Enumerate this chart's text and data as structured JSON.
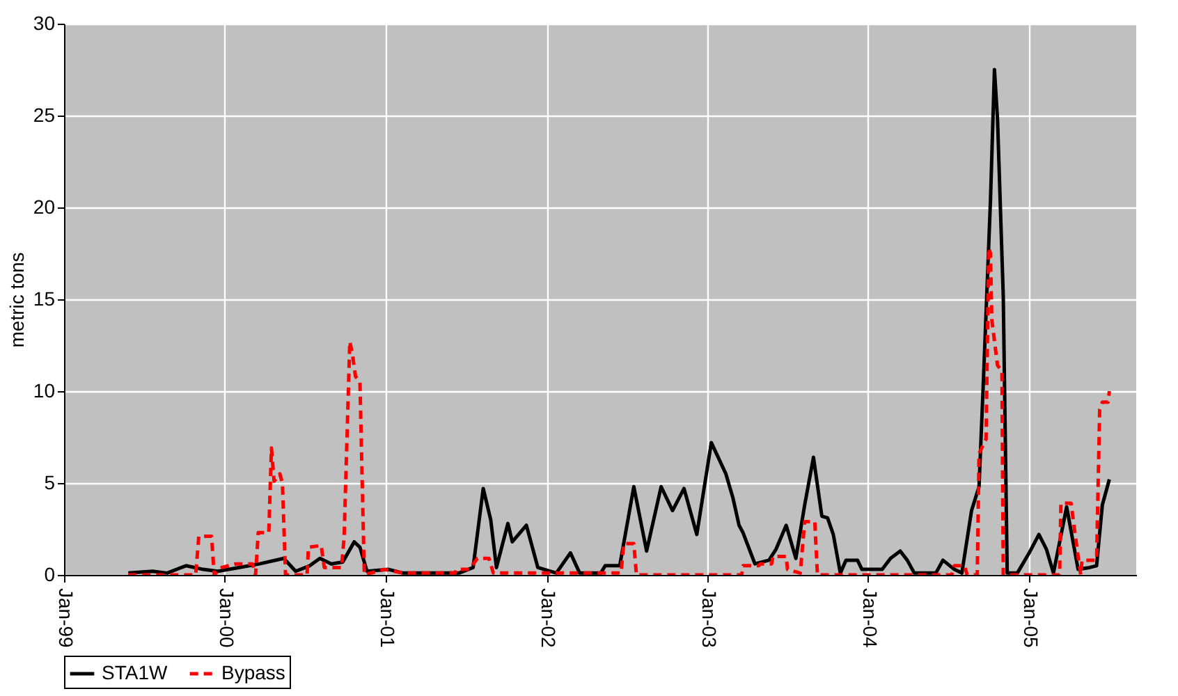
{
  "chart_data": {
    "type": "line",
    "ylabel": "metric tons",
    "xlim": [
      "1999-01-01",
      "2005-09-01"
    ],
    "xticks": [
      {
        "value": "1999-01-01",
        "label": "Jan-99"
      },
      {
        "value": "2000-01-01",
        "label": "Jan-00"
      },
      {
        "value": "2001-01-01",
        "label": "Jan-01"
      },
      {
        "value": "2002-01-01",
        "label": "Jan-02"
      },
      {
        "value": "2003-01-01",
        "label": "Jan-03"
      },
      {
        "value": "2004-01-01",
        "label": "Jan-04"
      },
      {
        "value": "2005-01-01",
        "label": "Jan-05"
      }
    ],
    "ylim": [
      0,
      30
    ],
    "yticks": [
      0,
      5,
      10,
      15,
      20,
      25,
      30
    ],
    "grid": true,
    "legend": "bottom",
    "series": [
      {
        "name": "STA1W",
        "color": "#000000",
        "line_style": "solid",
        "x": [
          "1999-05-27",
          "1999-07-21",
          "1999-08-23",
          "1999-10-05",
          "1999-11-13",
          "1999-12-16",
          "2000-02-02",
          "2000-03-20",
          "2000-05-14",
          "2000-06-10",
          "2000-07-12",
          "2000-08-04",
          "2000-08-30",
          "2000-09-25",
          "2000-10-21",
          "2000-11-03",
          "2000-11-19",
          "2001-01-07",
          "2001-02-09",
          "2001-06-16",
          "2001-07-18",
          "2001-08-10",
          "2001-08-27",
          "2001-09-09",
          "2001-10-05",
          "2001-10-15",
          "2001-11-16",
          "2001-12-12",
          "2002-01-23",
          "2002-02-24",
          "2002-03-17",
          "2002-05-04",
          "2002-05-14",
          "2002-06-16",
          "2002-07-18",
          "2002-08-16",
          "2002-09-18",
          "2002-10-14",
          "2002-11-09",
          "2002-12-08",
          "2003-01-10",
          "2003-02-12",
          "2003-02-28",
          "2003-03-14",
          "2003-03-23",
          "2003-04-19",
          "2003-05-21",
          "2003-06-06",
          "2003-06-29",
          "2003-07-21",
          "2003-08-10",
          "2003-08-30",
          "2003-09-18",
          "2003-10-01",
          "2003-10-14",
          "2003-10-30",
          "2003-11-12",
          "2003-12-08",
          "2003-12-18",
          "2004-02-02",
          "2004-02-21",
          "2004-03-14",
          "2004-03-30",
          "2004-04-15",
          "2004-06-03",
          "2004-06-19",
          "2004-07-15",
          "2004-08-01",
          "2004-08-23",
          "2004-09-09",
          "2004-09-18",
          "2004-10-05",
          "2004-10-14",
          "2004-10-21",
          "2004-11-03",
          "2004-11-12",
          "2004-12-05",
          "2005-01-01",
          "2005-01-23",
          "2005-02-09",
          "2005-02-25",
          "2005-03-27",
          "2005-04-22",
          "2005-05-18",
          "2005-06-03",
          "2005-06-16",
          "2005-07-02"
        ],
        "values": [
          0.1,
          0.2,
          0.1,
          0.5,
          0.3,
          0.2,
          0.4,
          0.6,
          0.9,
          0.2,
          0.5,
          0.9,
          0.6,
          0.7,
          1.8,
          1.5,
          0.2,
          0.3,
          0.1,
          0.1,
          0.4,
          4.7,
          3.0,
          0.4,
          2.8,
          1.8,
          2.7,
          0.4,
          0.1,
          1.2,
          0.1,
          0.1,
          0.5,
          0.5,
          4.8,
          1.3,
          4.8,
          3.5,
          4.7,
          2.2,
          7.2,
          5.5,
          4.2,
          2.7,
          2.3,
          0.6,
          0.8,
          1.4,
          2.7,
          0.9,
          3.8,
          6.4,
          3.2,
          3.1,
          2.2,
          0.1,
          0.8,
          0.8,
          0.3,
          0.3,
          0.9,
          1.3,
          0.8,
          0.1,
          0.1,
          0.8,
          0.3,
          0.1,
          3.5,
          4.8,
          10,
          20.4,
          27.5,
          24.8,
          15.2,
          0.1,
          0.1,
          1.2,
          2.2,
          1.4,
          0.1,
          3.7,
          0.3,
          0.4,
          0.5,
          3.8,
          5.2
        ]
      },
      {
        "name": "Bypass",
        "color": "#ff0000",
        "line_style": "dashed",
        "x": [
          "1999-05-27",
          "1999-10-27",
          "1999-11-03",
          "1999-12-02",
          "1999-12-08",
          "1999-12-25",
          "2000-01-26",
          "2000-03-04",
          "2000-03-11",
          "2000-03-17",
          "2000-04-10",
          "2000-04-16",
          "2000-04-22",
          "2000-05-05",
          "2000-05-11",
          "2000-05-18",
          "2000-07-06",
          "2000-07-09",
          "2000-08-07",
          "2000-08-14",
          "2000-09-22",
          "2000-09-28",
          "2000-10-11",
          "2000-10-17",
          "2000-10-24",
          "2000-11-03",
          "2000-11-13",
          "2000-12-28",
          "2001-02-09",
          "2001-06-07",
          "2001-06-10",
          "2001-07-09",
          "2001-07-28",
          "2001-08-23",
          "2001-09-02",
          "2002-06-19",
          "2002-06-25",
          "2002-07-18",
          "2002-07-24",
          "2003-03-20",
          "2003-03-23",
          "2003-04-28",
          "2003-05-01",
          "2003-05-27",
          "2003-05-30",
          "2003-06-29",
          "2003-07-02",
          "2003-07-31",
          "2003-08-10",
          "2003-09-02",
          "2003-09-08",
          "2004-07-09",
          "2004-07-15",
          "2004-08-07",
          "2004-08-13",
          "2004-09-05",
          "2004-09-09",
          "2004-09-25",
          "2004-10-01",
          "2004-10-05",
          "2004-10-08",
          "2004-10-21",
          "2004-10-31",
          "2004-11-03",
          "2005-03-11",
          "2005-03-14",
          "2005-04-06",
          "2005-04-22",
          "2005-04-28",
          "2005-05-01",
          "2005-06-03",
          "2005-06-10",
          "2005-06-16",
          "2005-06-29",
          "2005-07-02"
        ],
        "values": [
          0,
          0,
          2.1,
          2.1,
          0,
          0.4,
          0.6,
          0.6,
          0,
          2.3,
          2.3,
          6.9,
          5.1,
          5.5,
          5.0,
          0,
          0,
          1.5,
          1.6,
          0.4,
          0.4,
          2.0,
          12.7,
          12.0,
          10.8,
          10.5,
          0,
          0.3,
          0.1,
          0.1,
          0.3,
          0.3,
          0.9,
          0.9,
          0.1,
          0.1,
          1.7,
          1.7,
          0,
          0,
          0.5,
          0.5,
          0.6,
          0.6,
          1.0,
          1.0,
          0.3,
          0.1,
          2.9,
          2.9,
          0,
          0,
          0.5,
          0.5,
          0,
          0,
          6.6,
          7.4,
          17.8,
          17.5,
          13.9,
          11.4,
          11.1,
          0,
          0,
          3.9,
          3.9,
          1.0,
          0,
          0.8,
          0.8,
          9.0,
          9.4,
          9.4,
          10.0
        ]
      }
    ]
  }
}
